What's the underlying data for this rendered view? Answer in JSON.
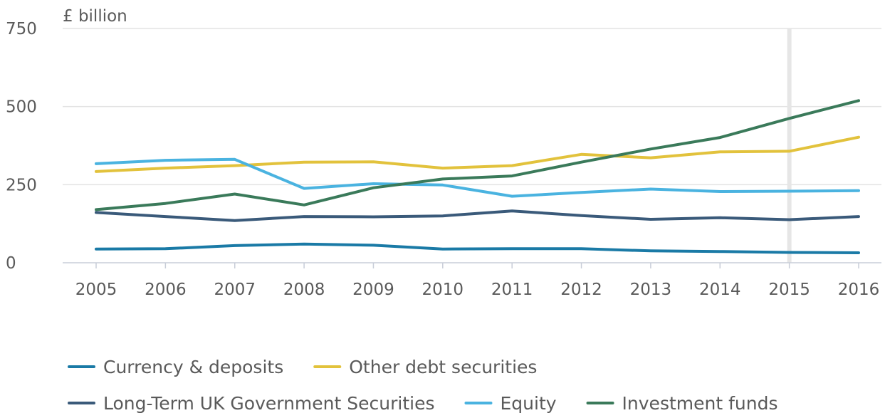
{
  "chart_data": {
    "type": "line",
    "y_unit_label": "£ billion",
    "x": [
      "2005",
      "2006",
      "2007",
      "2008",
      "2009",
      "2010",
      "2011",
      "2012",
      "2013",
      "2014",
      "2015",
      "2016"
    ],
    "y_ticks": [
      "0",
      "250",
      "500",
      "750"
    ],
    "ylim": [
      0,
      750
    ],
    "grid": true,
    "highlight_x": "2015",
    "legend_position": "bottom",
    "series": [
      {
        "name": "Currency & deposits",
        "color": "#1a7aa6",
        "values": [
          44,
          45,
          55,
          60,
          56,
          44,
          45,
          45,
          38,
          36,
          33,
          32
        ]
      },
      {
        "name": "Other debt securities",
        "color": "#e2c23c",
        "values": [
          292,
          303,
          311,
          322,
          323,
          303,
          311,
          347,
          336,
          355,
          357,
          402
        ]
      },
      {
        "name": "Long-Term UK Government Securities",
        "color": "#3a5a7a",
        "values": [
          161,
          148,
          135,
          148,
          147,
          150,
          166,
          151,
          139,
          144,
          138,
          148
        ]
      },
      {
        "name": "Equity",
        "color": "#4ab3e0",
        "values": [
          317,
          328,
          331,
          238,
          253,
          249,
          213,
          225,
          236,
          228,
          229,
          231
        ]
      },
      {
        "name": "Investment funds",
        "color": "#3a7a5a",
        "values": [
          170,
          190,
          220,
          185,
          240,
          268,
          278,
          322,
          364,
          401,
          462,
          519
        ]
      }
    ]
  }
}
